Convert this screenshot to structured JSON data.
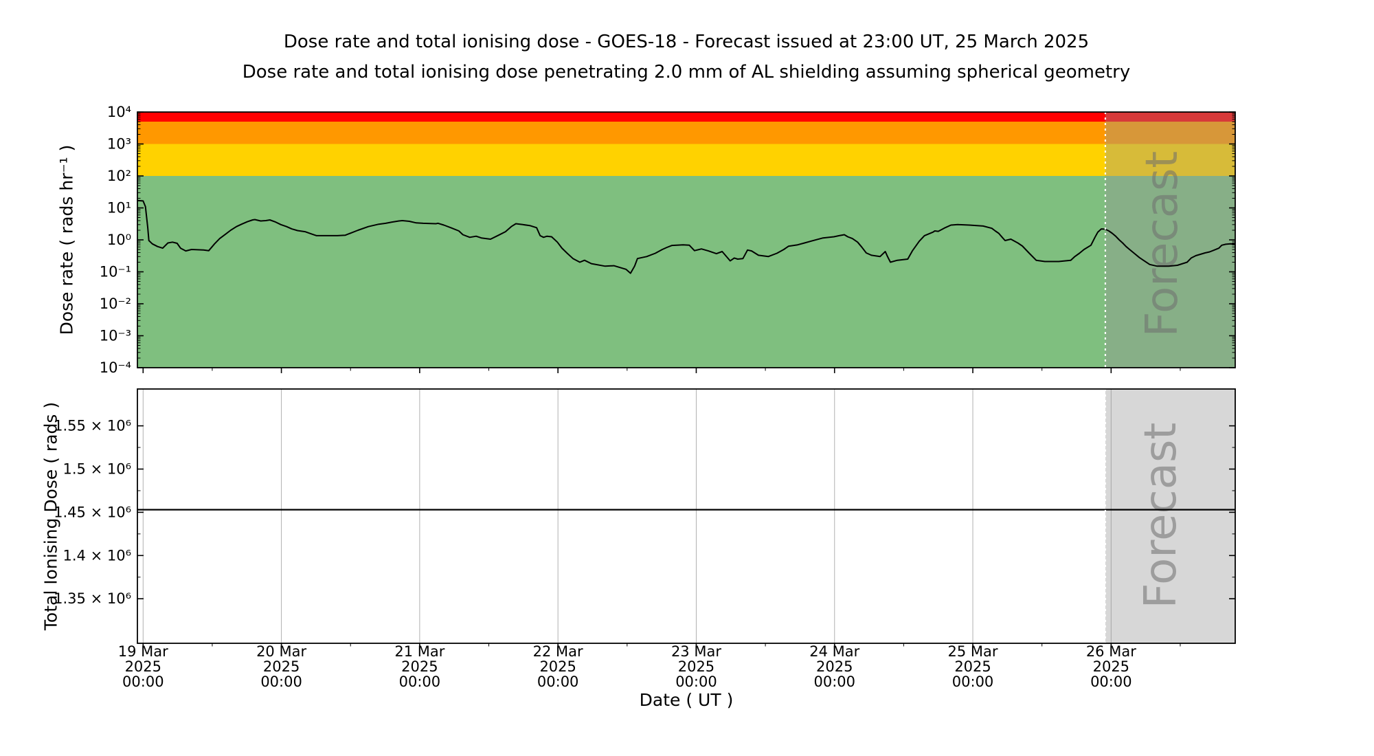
{
  "chart_data": {
    "type": "line",
    "title": "Dose rate and total ionising dose - GOES-18 - Forecast issued at 23:00 UT, 25 March 2025",
    "subtitle": "Dose rate and total ionising dose penetrating 2.0 mm of AL shielding assuming spherical geometry",
    "satellite": "GOES-18",
    "x_axis": {
      "label": "Date ( UT )",
      "start": "18 Mar 2025 23:00",
      "end": "26 Mar 2025 23:00",
      "minor_tick_interval_hours": 12,
      "major_ticks": [
        {
          "t_hours": 0,
          "lines": [
            "19 Mar",
            "2025",
            "00:00"
          ]
        },
        {
          "t_hours": 24,
          "lines": [
            "20 Mar",
            "2025",
            "00:00"
          ]
        },
        {
          "t_hours": 48,
          "lines": [
            "21 Mar",
            "2025",
            "00:00"
          ]
        },
        {
          "t_hours": 72,
          "lines": [
            "22 Mar",
            "2025",
            "00:00"
          ]
        },
        {
          "t_hours": 96,
          "lines": [
            "23 Mar",
            "2025",
            "00:00"
          ]
        },
        {
          "t_hours": 120,
          "lines": [
            "24 Mar",
            "2025",
            "00:00"
          ]
        },
        {
          "t_hours": 144,
          "lines": [
            "25 Mar",
            "2025",
            "00:00"
          ]
        },
        {
          "t_hours": 168,
          "lines": [
            "26 Mar",
            "2025",
            "00:00"
          ]
        }
      ]
    },
    "forecast": {
      "label": "Forecast",
      "start_t_hours": 167,
      "start_label": "25 Mar 2025 23:00 UT",
      "issued_at": "23:00 UT, 25 March 2025",
      "overlay_color": "rgba(150,150,150,0.38)",
      "divider_color": "#ffffff"
    },
    "gridline_color": "#b0b0b0",
    "panels": [
      {
        "name": "dose-rate",
        "ylabel": "Dose rate ( rads hr⁻¹ )",
        "yscale": "log",
        "ylim": [
          0.0001,
          10000
        ],
        "ytick_labels": [
          "10⁴",
          "10³",
          "10²",
          "10¹",
          "10⁰",
          "10⁻¹",
          "10⁻²",
          "10⁻³",
          "10⁻⁴"
        ],
        "ytick_values": [
          10000,
          1000,
          100,
          10,
          1,
          0.1,
          0.01,
          0.001,
          0.0001
        ],
        "bands": [
          {
            "label": "red",
            "from": 5000,
            "to": 10000,
            "color": "#ff0000"
          },
          {
            "label": "orange",
            "from": 1000,
            "to": 5000,
            "color": "#ff9800"
          },
          {
            "label": "yellow",
            "from": 100,
            "to": 1000,
            "color": "#ffd200"
          },
          {
            "label": "green",
            "from": 0.0001,
            "to": 100,
            "color": "#7fbf7f"
          }
        ],
        "series": [
          {
            "name": "Dose rate",
            "units": "rads hr⁻¹",
            "color": "#000000",
            "points_t_hours_value": [
              [
                -1,
                17
              ],
              [
                0,
                16.5
              ],
              [
                0.4,
                11
              ],
              [
                0.8,
                2.5
              ],
              [
                1,
                0.95
              ],
              [
                1.6,
                0.75
              ],
              [
                2.5,
                0.62
              ],
              [
                3.4,
                0.55
              ],
              [
                4.3,
                0.8
              ],
              [
                5.1,
                0.85
              ],
              [
                5.9,
                0.78
              ],
              [
                6.5,
                0.55
              ],
              [
                7.4,
                0.45
              ],
              [
                8.4,
                0.5
              ],
              [
                10.5,
                0.48
              ],
              [
                11.4,
                0.46
              ],
              [
                12.4,
                0.75
              ],
              [
                13.3,
                1.1
              ],
              [
                14.3,
                1.5
              ],
              [
                15.2,
                2.0
              ],
              [
                16.2,
                2.6
              ],
              [
                17.1,
                3.1
              ],
              [
                18.1,
                3.7
              ],
              [
                19,
                4.2
              ],
              [
                19.4,
                4.3
              ],
              [
                20.4,
                3.9
              ],
              [
                21.3,
                4.0
              ],
              [
                22,
                4.2
              ],
              [
                23,
                3.6
              ],
              [
                23.9,
                3.0
              ],
              [
                24.9,
                2.6
              ],
              [
                25.8,
                2.2
              ],
              [
                26.8,
                1.95
              ],
              [
                28.1,
                1.8
              ],
              [
                29.1,
                1.55
              ],
              [
                30.1,
                1.35
              ],
              [
                33.7,
                1.35
              ],
              [
                35.1,
                1.4
              ],
              [
                36.1,
                1.65
              ],
              [
                37.3,
                2.0
              ],
              [
                39.1,
                2.6
              ],
              [
                40.9,
                3.1
              ],
              [
                42.1,
                3.3
              ],
              [
                43.2,
                3.6
              ],
              [
                44.4,
                3.9
              ],
              [
                45,
                4.0
              ],
              [
                46.2,
                3.8
              ],
              [
                47.4,
                3.4
              ],
              [
                48.6,
                3.3
              ],
              [
                50.8,
                3.2
              ],
              [
                51.2,
                3.3
              ],
              [
                52.2,
                2.9
              ],
              [
                53.4,
                2.4
              ],
              [
                54.8,
                1.9
              ],
              [
                55.5,
                1.45
              ],
              [
                56.7,
                1.2
              ],
              [
                57.8,
                1.3
              ],
              [
                58.7,
                1.15
              ],
              [
                60.3,
                1.05
              ],
              [
                61.7,
                1.4
              ],
              [
                62.9,
                1.8
              ],
              [
                63.9,
                2.6
              ],
              [
                64.7,
                3.2
              ],
              [
                65.9,
                3.0
              ],
              [
                67.1,
                2.8
              ],
              [
                68.3,
                2.4
              ],
              [
                68.9,
                1.35
              ],
              [
                69.5,
                1.2
              ],
              [
                70.1,
                1.3
              ],
              [
                70.9,
                1.25
              ],
              [
                71.9,
                0.85
              ],
              [
                72.7,
                0.55
              ],
              [
                73.6,
                0.38
              ],
              [
                74.6,
                0.26
              ],
              [
                75.8,
                0.2
              ],
              [
                76.6,
                0.23
              ],
              [
                77.8,
                0.18
              ],
              [
                80.2,
                0.15
              ],
              [
                81.7,
                0.155
              ],
              [
                83.8,
                0.12
              ],
              [
                84.6,
                0.09
              ],
              [
                85.3,
                0.15
              ],
              [
                85.8,
                0.26
              ],
              [
                87.4,
                0.3
              ],
              [
                88.9,
                0.38
              ],
              [
                90.1,
                0.5
              ],
              [
                90.9,
                0.58
              ],
              [
                91.8,
                0.67
              ],
              [
                93.7,
                0.7
              ],
              [
                94.8,
                0.68
              ],
              [
                95.7,
                0.46
              ],
              [
                96.9,
                0.52
              ],
              [
                98.1,
                0.45
              ],
              [
                99.5,
                0.37
              ],
              [
                100.5,
                0.43
              ],
              [
                101.9,
                0.22
              ],
              [
                102.6,
                0.27
              ],
              [
                103.2,
                0.25
              ],
              [
                104.1,
                0.26
              ],
              [
                104.9,
                0.48
              ],
              [
                105.6,
                0.45
              ],
              [
                106.8,
                0.33
              ],
              [
                108.5,
                0.3
              ],
              [
                110,
                0.38
              ],
              [
                111.2,
                0.5
              ],
              [
                112,
                0.63
              ],
              [
                113.6,
                0.7
              ],
              [
                114.8,
                0.8
              ],
              [
                116,
                0.92
              ],
              [
                118,
                1.15
              ],
              [
                119.9,
                1.25
              ],
              [
                120.8,
                1.35
              ],
              [
                121.7,
                1.45
              ],
              [
                122.3,
                1.25
              ],
              [
                123.1,
                1.1
              ],
              [
                124,
                0.85
              ],
              [
                124.7,
                0.6
              ],
              [
                125.5,
                0.39
              ],
              [
                126.4,
                0.33
              ],
              [
                127.9,
                0.3
              ],
              [
                128.8,
                0.43
              ],
              [
                129.2,
                0.3
              ],
              [
                129.7,
                0.2
              ],
              [
                130.9,
                0.23
              ],
              [
                132.7,
                0.25
              ],
              [
                133.5,
                0.45
              ],
              [
                134.7,
                0.9
              ],
              [
                135.6,
                1.35
              ],
              [
                137.1,
                1.75
              ],
              [
                137.4,
                1.9
              ],
              [
                138,
                1.85
              ],
              [
                138.6,
                2.1
              ],
              [
                139.2,
                2.4
              ],
              [
                140.2,
                2.9
              ],
              [
                141.4,
                3.0
              ],
              [
                143.4,
                2.9
              ],
              [
                145.8,
                2.7
              ],
              [
                147.3,
                2.3
              ],
              [
                147.9,
                1.9
              ],
              [
                148.5,
                1.6
              ],
              [
                149.1,
                1.2
              ],
              [
                149.6,
                0.95
              ],
              [
                150.6,
                1.05
              ],
              [
                151.8,
                0.8
              ],
              [
                152.6,
                0.64
              ],
              [
                153.8,
                0.38
              ],
              [
                155,
                0.23
              ],
              [
                156.5,
                0.21
              ],
              [
                158.9,
                0.21
              ],
              [
                161,
                0.23
              ],
              [
                161.7,
                0.3
              ],
              [
                162.5,
                0.38
              ],
              [
                163.3,
                0.5
              ],
              [
                164.5,
                0.68
              ],
              [
                165.2,
                1.2
              ],
              [
                165.7,
                1.75
              ],
              [
                166.3,
                2.2
              ],
              [
                167,
                2.15
              ],
              [
                167.6,
                1.9
              ],
              [
                168.2,
                1.6
              ],
              [
                168.8,
                1.3
              ],
              [
                169.4,
                1.0
              ],
              [
                170,
                0.8
              ],
              [
                170.6,
                0.62
              ],
              [
                171.2,
                0.5
              ],
              [
                172,
                0.38
              ],
              [
                172.9,
                0.28
              ],
              [
                173.6,
                0.23
              ],
              [
                174.7,
                0.17
              ],
              [
                176,
                0.15
              ],
              [
                178,
                0.15
              ],
              [
                179.5,
                0.16
              ],
              [
                181.2,
                0.2
              ],
              [
                181.9,
                0.27
              ],
              [
                182.7,
                0.32
              ],
              [
                184.3,
                0.39
              ],
              [
                185.1,
                0.42
              ],
              [
                185.9,
                0.48
              ],
              [
                186.7,
                0.55
              ],
              [
                187.2,
                0.68
              ],
              [
                187.9,
                0.73
              ],
              [
                188.7,
                0.75
              ],
              [
                189.5,
                0.73
              ]
            ]
          }
        ]
      },
      {
        "name": "total-ionising-dose",
        "ylabel": "Total Ionising Dose ( rads )",
        "yscale": "linear",
        "ylim": [
          1298500,
          1592600
        ],
        "ytick_labels": [
          "1.55 × 10⁶",
          "1.5 × 10⁶",
          "1.45 × 10⁶",
          "1.4 × 10⁶",
          "1.35 × 10⁶"
        ],
        "ytick_values": [
          1550000,
          1500000,
          1450000,
          1400000,
          1350000
        ],
        "minor_ytick_values": [
          1525000,
          1475000,
          1425000,
          1375000
        ],
        "series": [
          {
            "name": "Total ionising dose",
            "units": "rads",
            "color": "#000000",
            "points_t_hours_value": [
              [
                -1,
                1453000
              ],
              [
                189.5,
                1453000
              ]
            ]
          }
        ]
      }
    ]
  }
}
